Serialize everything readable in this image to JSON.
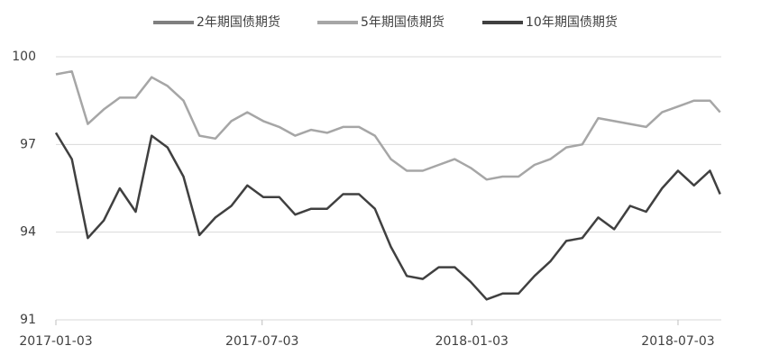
{
  "chart_data": {
    "type": "line",
    "x": [
      "2017-01-03",
      "2017-01-17",
      "2017-01-31",
      "2017-02-14",
      "2017-02-28",
      "2017-03-14",
      "2017-03-28",
      "2017-04-11",
      "2017-04-25",
      "2017-05-09",
      "2017-05-23",
      "2017-06-06",
      "2017-06-20",
      "2017-07-04",
      "2017-07-18",
      "2017-08-01",
      "2017-08-15",
      "2017-08-29",
      "2017-09-12",
      "2017-09-26",
      "2017-10-10",
      "2017-10-24",
      "2017-11-07",
      "2017-11-21",
      "2017-12-05",
      "2017-12-19",
      "2018-01-02",
      "2018-01-16",
      "2018-01-30",
      "2018-02-13",
      "2018-02-27",
      "2018-03-13",
      "2018-03-27",
      "2018-04-10",
      "2018-04-24",
      "2018-05-08",
      "2018-05-22",
      "2018-06-05",
      "2018-06-19",
      "2018-07-03",
      "2018-07-17",
      "2018-07-31",
      "2018-08-09"
    ],
    "series": [
      {
        "name": "2年期国债期货",
        "color": "#7f7f7f",
        "values": [
          null,
          null,
          null,
          null,
          null,
          null,
          null,
          null,
          null,
          null,
          null,
          null,
          null,
          null,
          null,
          null,
          null,
          null,
          null,
          null,
          null,
          null,
          null,
          null,
          null,
          null,
          null,
          null,
          null,
          null,
          null,
          null,
          null,
          null,
          null,
          null,
          null,
          null,
          null,
          null,
          null,
          null,
          null
        ]
      },
      {
        "name": "5年期国债期货",
        "color": "#a6a6a6",
        "values": [
          99.4,
          99.5,
          97.7,
          98.2,
          98.6,
          98.6,
          99.3,
          99.0,
          98.5,
          97.3,
          97.2,
          97.8,
          98.1,
          97.8,
          97.6,
          97.3,
          97.5,
          97.4,
          97.6,
          97.6,
          97.3,
          96.5,
          96.1,
          96.1,
          96.3,
          96.5,
          96.2,
          95.8,
          95.9,
          95.9,
          96.3,
          96.5,
          96.9,
          97.0,
          97.9,
          97.8,
          97.7,
          97.6,
          98.1,
          98.3,
          98.5,
          98.5,
          98.1
        ]
      },
      {
        "name": "10年期国债期货",
        "color": "#404040",
        "values": [
          97.4,
          96.5,
          93.8,
          94.4,
          95.5,
          94.7,
          97.3,
          96.9,
          95.9,
          93.9,
          94.5,
          94.9,
          95.6,
          95.2,
          95.2,
          94.6,
          94.8,
          94.8,
          95.3,
          95.3,
          94.8,
          93.5,
          92.5,
          92.4,
          92.8,
          92.8,
          92.3,
          91.7,
          91.9,
          91.9,
          92.5,
          93.0,
          93.7,
          93.8,
          94.5,
          94.1,
          94.9,
          94.7,
          95.5,
          96.1,
          95.6,
          96.1,
          95.3
        ]
      }
    ],
    "xlim": [
      "2017-01-03",
      "2018-08-10"
    ],
    "xticks": [
      "2017-01-03",
      "2017-07-03",
      "2018-01-03",
      "2018-07-03"
    ],
    "ylim": [
      91,
      100
    ],
    "yticks": [
      91,
      94,
      97,
      100
    ],
    "grid": true
  }
}
